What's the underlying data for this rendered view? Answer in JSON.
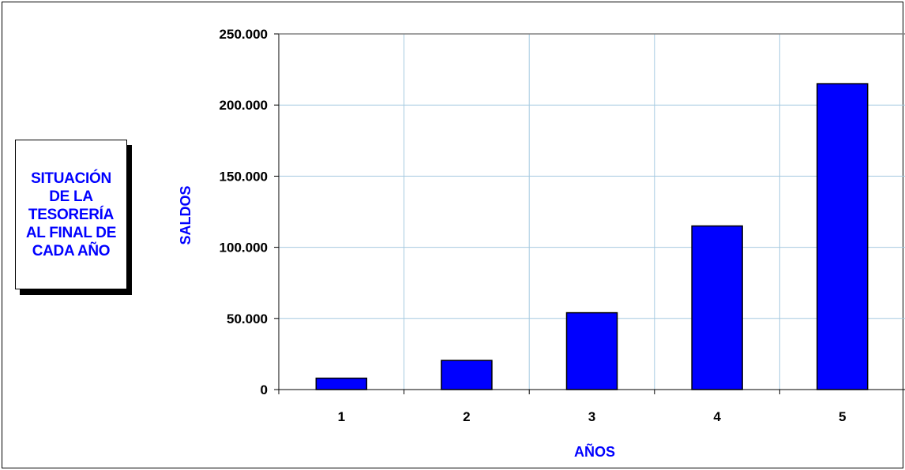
{
  "title_box": {
    "text": "SITUACIÓN\nDE LA\nTESORERÍA\nAL FINAL DE\nCADA AÑO"
  },
  "colors": {
    "bar": "#0000ff",
    "grid": "#a6cae0",
    "axis_title": "#0000ff"
  },
  "chart_data": {
    "type": "bar",
    "categories": [
      "1",
      "2",
      "3",
      "4",
      "5"
    ],
    "values": [
      8000,
      20500,
      54000,
      115000,
      215000
    ],
    "ylim": [
      0,
      250000
    ],
    "yticks": [
      0,
      50000,
      100000,
      150000,
      200000,
      250000
    ],
    "ytick_labels": [
      "0",
      "50.000",
      "100.000",
      "150.000",
      "200.000",
      "250.000"
    ],
    "xlabel": "AÑOS",
    "ylabel": "SALDOS",
    "grid": true,
    "legend": "none"
  }
}
